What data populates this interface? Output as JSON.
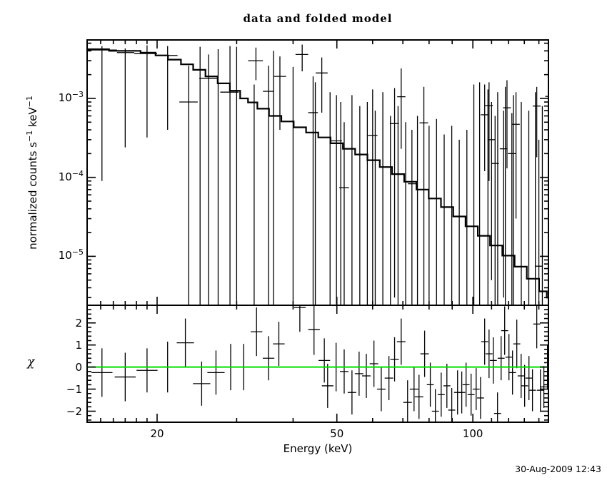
{
  "footer": {
    "timestamp": "30-Aug-2009 12:43"
  },
  "chart_data": {
    "type": "line",
    "title": "data and folded model",
    "xlabel": "Energy (keV)",
    "legend": "none",
    "grid": false,
    "colors": {
      "frame": "#000000",
      "data": "#000000",
      "model": "#000000",
      "zero_line": "#00dd00",
      "background": "#ffffff"
    },
    "x_axis": {
      "scale": "log",
      "min": 14.0,
      "max": 147.0,
      "major_ticks": [
        20,
        50,
        100
      ],
      "major_labels": [
        "20",
        "50",
        "100"
      ],
      "minor_ticks": [
        15,
        16,
        17,
        18,
        19,
        30,
        40,
        60,
        70,
        80,
        90,
        110,
        120,
        130,
        140
      ]
    },
    "top_panel": {
      "ylabel": {
        "t1": "normalized counts s",
        "sup1": "−1",
        "t2": " keV",
        "sup2": "−1"
      },
      "yscale": "log",
      "ymin": 2.4e-06,
      "ymax": 0.0055,
      "decade_labels": [
        {
          "base": "10",
          "exp": "−3",
          "value": 0.001
        },
        {
          "base": "10",
          "exp": "−4",
          "value": 0.0001
        },
        {
          "base": "10",
          "exp": "−5",
          "value": 1e-05
        }
      ],
      "model_steps": [
        [
          14.0,
          0.0042
        ],
        [
          17.5,
          0.004
        ],
        [
          19.3,
          0.0038
        ],
        [
          20.4,
          0.0035
        ],
        [
          21.9,
          0.0031
        ],
        [
          23.3,
          0.0027
        ],
        [
          24.8,
          0.0023
        ],
        [
          26.4,
          0.0019
        ],
        [
          28.1,
          0.00155
        ],
        [
          29.9,
          0.00125
        ],
        [
          31.2,
          0.001
        ],
        [
          32.4,
          0.00089
        ],
        [
          34.3,
          0.00074
        ],
        [
          36.5,
          0.0006
        ],
        [
          38.9,
          0.00051
        ],
        [
          41.4,
          0.00043
        ],
        [
          44.1,
          0.00037
        ],
        [
          46.9,
          0.00032
        ],
        [
          50.0,
          0.00027
        ],
        [
          53.2,
          0.00023
        ],
        [
          56.6,
          0.000195
        ],
        [
          60.3,
          0.000165
        ],
        [
          64.2,
          0.000135
        ],
        [
          68.3,
          0.00011
        ],
        [
          72.7,
          8.8e-05
        ],
        [
          77.4,
          7e-05
        ],
        [
          82.4,
          5.4e-05
        ],
        [
          87.7,
          4.2e-05
        ],
        [
          93.4,
          3.2e-05
        ],
        [
          99.4,
          2.4e-05
        ],
        [
          105.8,
          1.82e-05
        ],
        [
          112.6,
          1.37e-05
        ],
        [
          119.9,
          1.02e-05
        ],
        [
          127.6,
          7.4e-06
        ],
        [
          135.8,
          5.2e-06
        ],
        [
          144.6,
          3.6e-06
        ],
        [
          147.0,
          3e-06
        ]
      ],
      "data_points": [
        [
          14.0,
          15.1,
          16.3,
          0.0041,
          9e-05,
          0.0046
        ],
        [
          16.3,
          17.0,
          17.8,
          0.0038,
          0.00024,
          0.0043
        ],
        [
          17.8,
          19.0,
          20.0,
          0.0037,
          0.00032,
          0.0047
        ],
        [
          20.0,
          21.1,
          22.2,
          0.0035,
          0.0004,
          0.0046
        ],
        [
          22.4,
          23.5,
          24.6,
          0.0009,
          0,
          0.0026
        ],
        [
          24.8,
          26.0,
          27.2,
          0.0018,
          0,
          0.0036
        ],
        [
          27.6,
          29.0,
          30.3,
          0.0012,
          0,
          0.0046
        ],
        [
          31.8,
          33.1,
          34.3,
          0.003,
          0.0017,
          0.0044
        ],
        [
          34.3,
          35.3,
          36.3,
          0.00123,
          0,
          0.0026
        ],
        [
          36.3,
          37.4,
          38.6,
          0.0019,
          0.0004,
          0.0034
        ],
        [
          40.5,
          41.9,
          43.2,
          0.0036,
          0.0022,
          0.0048
        ],
        [
          43.2,
          44.3,
          45.4,
          0.00066,
          0,
          0.0019
        ],
        [
          44.9,
          46.3,
          47.7,
          0.0021,
          0.00066,
          0.0033
        ],
        [
          48.4,
          49.9,
          51.3,
          0.00029,
          0,
          0.0011
        ],
        [
          50.6,
          51.9,
          53.2,
          7.4e-05,
          0,
          0.0005
        ],
        [
          58.6,
          60.0,
          61.5,
          0.00034,
          0,
          0.0013
        ],
        [
          65.5,
          67.1,
          68.6,
          0.00048,
          3e-06,
          0.00135
        ],
        [
          68.0,
          69.4,
          70.9,
          0.00105,
          0.00023,
          0.0024
        ],
        [
          71.8,
          73.3,
          74.8,
          8.3e-05,
          0,
          0.0004
        ],
        [
          76.2,
          77.9,
          79.6,
          0.00049,
          0,
          0.0014
        ],
        [
          104.1,
          106.2,
          108.3,
          0.00062,
          0.00012,
          0.0015
        ],
        [
          106.5,
          108.6,
          110.8,
          0.00081,
          9e-05,
          0.0016
        ],
        [
          107.8,
          110.0,
          112.2,
          0.0003,
          5e-06,
          0.0009
        ],
        [
          109.8,
          112.0,
          114.2,
          0.00015,
          0,
          0.0006
        ],
        [
          114.7,
          117.0,
          119.3,
          0.00023,
          3e-06,
          0.0007
        ],
        [
          116.6,
          119.0,
          121.4,
          0.00076,
          0.00013,
          0.0017
        ],
        [
          119.6,
          122.0,
          124.4,
          0.0002,
          2e-06,
          0.00065
        ],
        [
          122.2,
          124.6,
          127.0,
          0.00047,
          3e-05,
          0.0012
        ],
        [
          135.7,
          138.5,
          141.3,
          0.0008,
          0.00018,
          0.0014
        ],
        [
          137.2,
          140.0,
          142.8,
          7.5e-06,
          0,
          0.0003
        ],
        [
          144.6,
          147.5,
          150.0,
          0.00106,
          0.00028,
          0.002
        ]
      ],
      "tall_error_bars": [
        [
          24.9,
          0.0045
        ],
        [
          27.3,
          0.0042
        ],
        [
          30.0,
          0.0045
        ],
        [
          32.8,
          0.0015
        ],
        [
          36.2,
          0.004
        ],
        [
          40.0,
          0.0025
        ],
        [
          44.8,
          0.0016
        ],
        [
          48.3,
          0.0012
        ],
        [
          51.0,
          0.0009
        ],
        [
          54.0,
          0.0011
        ],
        [
          56.2,
          0.0008
        ],
        [
          58.4,
          0.0009
        ],
        [
          60.8,
          0.0007
        ],
        [
          63.2,
          0.0012
        ],
        [
          65.7,
          0.0006
        ],
        [
          68.3,
          0.0008
        ],
        [
          71.0,
          0.0005
        ],
        [
          75.4,
          0.0006
        ],
        [
          80.0,
          0.00045
        ],
        [
          83.1,
          0.00055
        ],
        [
          86.4,
          0.00035
        ],
        [
          89.8,
          0.00045
        ],
        [
          93.3,
          0.0003
        ],
        [
          97.0,
          0.0004
        ],
        [
          100.5,
          0.0015
        ],
        [
          103.5,
          0.0016
        ],
        [
          108.0,
          0.0013
        ],
        [
          113.5,
          0.0012
        ],
        [
          118.0,
          0.0014
        ],
        [
          123.0,
          0.0011
        ],
        [
          128.0,
          0.0009
        ],
        [
          133.0,
          0.0007
        ],
        [
          137.5,
          0.0012
        ],
        [
          142.5,
          0.0008
        ]
      ]
    },
    "bottom_panel": {
      "ylabel": "χ",
      "ymin": -2.5,
      "ymax": 2.8,
      "major_ticks": [
        2,
        1,
        0,
        -1,
        -2
      ],
      "major_labels": [
        "2",
        "1",
        "0",
        "−1",
        "−2"
      ],
      "minor_step": 0.2,
      "zero_line_value": 0,
      "points": [
        [
          15.1,
          -0.25,
          1.1
        ],
        [
          17.0,
          -0.45,
          1.1
        ],
        [
          19.0,
          -0.15,
          1.0
        ],
        [
          21.1,
          0.0,
          1.15
        ],
        [
          23.1,
          1.1,
          1.1
        ],
        [
          25.1,
          -0.75,
          1.0
        ],
        [
          27.0,
          -0.25,
          1.0
        ],
        [
          29.1,
          0.0,
          1.05
        ],
        [
          31.1,
          0.0,
          1.05
        ],
        [
          33.2,
          1.6,
          1.1
        ],
        [
          35.3,
          0.4,
          1.0
        ],
        [
          37.2,
          1.05,
          1.0
        ],
        [
          41.4,
          2.7,
          1.1
        ],
        [
          44.5,
          1.7,
          1.15
        ],
        [
          46.9,
          0.3,
          1.0
        ],
        [
          47.7,
          -0.85,
          1.0
        ],
        [
          49.8,
          0.0,
          1.1
        ],
        [
          51.9,
          -0.2,
          1.0
        ],
        [
          54.0,
          -1.15,
          1.0
        ],
        [
          56.0,
          -0.3,
          1.0
        ],
        [
          58.1,
          -0.4,
          1.0
        ],
        [
          60.4,
          0.15,
          1.05
        ],
        [
          62.7,
          -1.0,
          1.0
        ],
        [
          65.2,
          -0.5,
          1.0
        ],
        [
          67.1,
          0.35,
          1.0
        ],
        [
          69.4,
          1.15,
          1.05
        ],
        [
          71.7,
          -1.6,
          1.0
        ],
        [
          74.1,
          -1.0,
          1.0
        ],
        [
          76.0,
          -1.35,
          1.0
        ],
        [
          78.2,
          0.6,
          1.05
        ],
        [
          80.5,
          -0.8,
          1.0
        ],
        [
          82.6,
          -2.0,
          1.0
        ],
        [
          85.1,
          -1.25,
          1.0
        ],
        [
          87.6,
          -0.85,
          1.0
        ],
        [
          89.8,
          -1.95,
          1.0
        ],
        [
          92.5,
          -1.15,
          1.0
        ],
        [
          94.5,
          -1.15,
          0.95
        ],
        [
          96.6,
          -0.8,
          1.0
        ],
        [
          99.1,
          -1.25,
          0.95
        ],
        [
          101.7,
          -1.0,
          0.95
        ],
        [
          104.0,
          -1.4,
          0.95
        ],
        [
          106.2,
          1.15,
          1.05
        ],
        [
          108.6,
          0.6,
          1.1
        ],
        [
          111.0,
          0.3,
          1.05
        ],
        [
          113.4,
          -2.1,
          0.95
        ],
        [
          115.5,
          0.4,
          1.0
        ],
        [
          117.6,
          1.65,
          1.1
        ],
        [
          120.2,
          0.45,
          1.05
        ],
        [
          122.4,
          -0.25,
          1.0
        ],
        [
          125.1,
          1.05,
          1.1
        ],
        [
          127.9,
          -0.4,
          1.0
        ],
        [
          130.2,
          -0.85,
          0.95
        ],
        [
          133.1,
          -0.5,
          1.0
        ],
        [
          135.5,
          -1.05,
          0.95
        ],
        [
          138.5,
          1.95,
          1.1
        ],
        [
          141.1,
          -1.05,
          0.95
        ],
        [
          143.6,
          -0.9,
          0.95
        ],
        [
          146.3,
          0.0,
          1.0
        ]
      ]
    }
  }
}
